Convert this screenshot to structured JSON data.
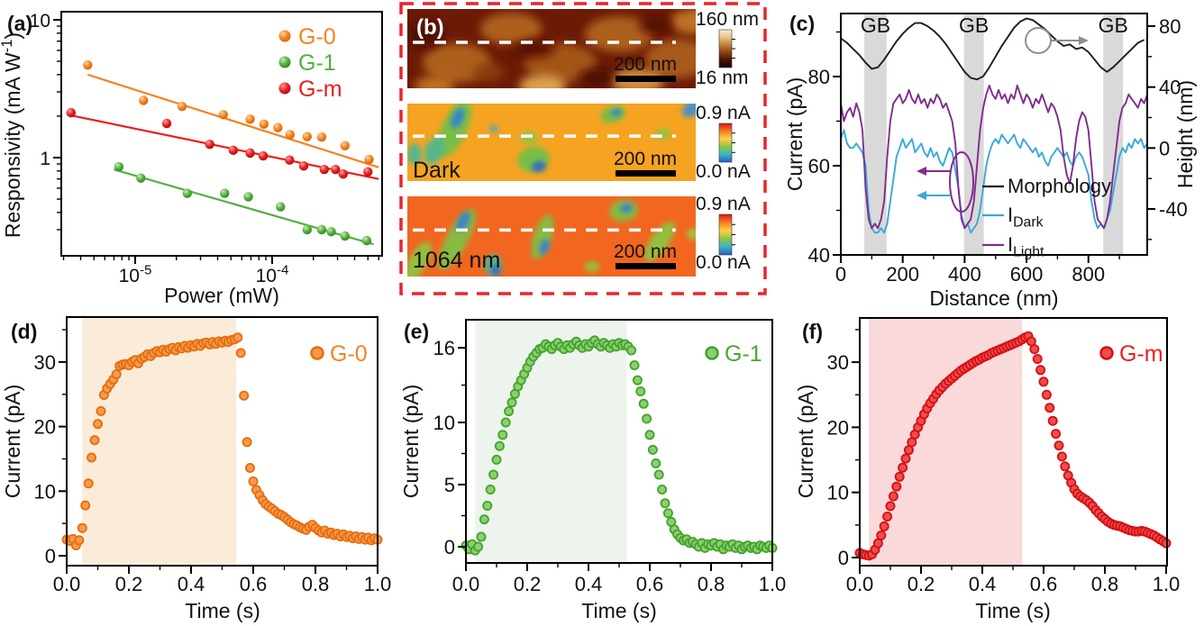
{
  "colors": {
    "orange": "#f58220",
    "orange_dark": "#e66d0e",
    "orange_fill": "#f79a4e",
    "green": "#53b043",
    "green_dark": "#3f9e2d",
    "green_fill": "#8ccf70",
    "red": "#e9201f",
    "red_dark": "#d31016",
    "red_fill": "#f04c49",
    "blue": "#38a8dd",
    "purple": "#7f2d8c",
    "black": "#1c1c1c",
    "gray_band": "#d9d9d9",
    "annotation_gray": "#8f8f8f",
    "dashed_border": "#e8252b"
  },
  "chart_data": [
    {
      "id": "a",
      "type": "scatter",
      "xscale": "log",
      "yscale": "log",
      "panel_label": "(a)",
      "xlabel": "Power (mW)",
      "ylabel": "Responsivity (mA W^{-1})",
      "xlim": [
        2.9e-06,
        0.00062
      ],
      "ylim": [
        0.2,
        10.5
      ],
      "xticks": [
        {
          "v": 1e-05,
          "label": "10^{-5}"
        },
        {
          "v": 0.0001,
          "label": "10^{-4}"
        }
      ],
      "yticks": [
        {
          "v": 1,
          "label": "1"
        },
        {
          "v": 10,
          "label": "10"
        }
      ],
      "series": [
        {
          "name": "G-0",
          "color": "#f58220",
          "points": [
            [
              4.5e-06,
              4.7
            ],
            [
              1.15e-05,
              2.6
            ],
            [
              2.2e-05,
              2.35
            ],
            [
              4.4e-05,
              2.05
            ],
            [
              6.9e-05,
              1.9
            ],
            [
              8.7e-05,
              1.75
            ],
            [
              0.00011,
              1.65
            ],
            [
              0.000135,
              1.47
            ],
            [
              0.00018,
              1.42
            ],
            [
              0.00023,
              1.41
            ],
            [
              0.00034,
              1.22
            ],
            [
              0.00051,
              0.97
            ]
          ],
          "fit": [
            [
              4.5e-06,
              4.0
            ],
            [
              0.0006,
              0.85
            ]
          ]
        },
        {
          "name": "G-1",
          "color": "#53b043",
          "points": [
            [
              7.6e-06,
              0.86
            ],
            [
              1.1e-05,
              0.71
            ],
            [
              2.4e-05,
              0.55
            ],
            [
              4.5e-05,
              0.55
            ],
            [
              6.7e-05,
              0.52
            ],
            [
              0.000115,
              0.44
            ],
            [
              0.00018,
              0.3
            ],
            [
              0.00023,
              0.3
            ],
            [
              0.00027,
              0.29
            ],
            [
              0.00034,
              0.27
            ],
            [
              0.00049,
              0.25
            ]
          ],
          "fit": [
            [
              7e-06,
              0.82
            ],
            [
              0.00055,
              0.235
            ]
          ]
        },
        {
          "name": "G-m",
          "color": "#e9201f",
          "points": [
            [
              3.4e-06,
              2.12
            ],
            [
              1.7e-05,
              1.77
            ],
            [
              3.5e-05,
              1.25
            ],
            [
              5.2e-05,
              1.13
            ],
            [
              6.9e-05,
              1.08
            ],
            [
              8.6e-05,
              1.03
            ],
            [
              0.000134,
              0.96
            ],
            [
              0.00017,
              0.87
            ],
            [
              0.00024,
              0.82
            ],
            [
              0.00029,
              0.82
            ],
            [
              0.00033,
              0.76
            ],
            [
              0.0005,
              0.79
            ]
          ],
          "fit": [
            [
              3.2e-06,
              2.05
            ],
            [
              0.0006,
              0.7
            ]
          ]
        }
      ]
    },
    {
      "id": "c",
      "type": "line",
      "panel_label": "(c)",
      "xlabel": "Distance (nm)",
      "ylabel_left": "Current (pA)",
      "ylabel_right": "Height (nm)",
      "xlim": [
        0,
        990
      ],
      "xticks": [
        0,
        200,
        400,
        600,
        800
      ],
      "ylim_left": [
        40,
        94
      ],
      "yticks_left": [
        40,
        60,
        80
      ],
      "yticks_left_minor": [
        50,
        70,
        90
      ],
      "ylim_right": [
        -72,
        88
      ],
      "yticks_right": [
        -40,
        0,
        40,
        80
      ],
      "yticks_right_minor": [
        -60,
        -20,
        20,
        60
      ],
      "gb_label": "GB",
      "gb_bands": [
        [
          76,
          148
        ],
        [
          398,
          462
        ],
        [
          848,
          912
        ]
      ],
      "series": [
        {
          "name": "Morphology",
          "axis": "right",
          "color": "#1c1c1c",
          "x0": 0,
          "dx": 20,
          "values": [
            72,
            69,
            65,
            61,
            56,
            52,
            53,
            58,
            64,
            70,
            75,
            79,
            82,
            82,
            80,
            77,
            73,
            68,
            62,
            56,
            50,
            46,
            45,
            47,
            53,
            60,
            67,
            73,
            79,
            83,
            85,
            84,
            81,
            78,
            74,
            70,
            67,
            68,
            65,
            66,
            63,
            58,
            53,
            50,
            53,
            57,
            61,
            65,
            69,
            71
          ]
        },
        {
          "name": "I_{Dark}",
          "axis": "left",
          "color": "#38a8dd",
          "x0": 0,
          "dx": 10,
          "values": [
            66,
            68,
            65,
            64,
            64,
            65,
            64,
            63,
            60,
            50,
            46,
            45,
            45,
            46,
            45,
            47,
            52,
            57,
            62,
            64,
            66,
            64,
            65,
            66,
            63,
            64,
            65,
            63,
            62,
            64,
            62,
            63,
            61,
            60,
            62,
            64,
            63,
            59,
            55,
            49,
            46,
            47,
            45,
            46,
            47,
            50,
            55,
            60,
            63,
            65,
            66,
            65,
            67,
            66,
            65,
            66,
            67,
            65,
            64,
            66,
            65,
            64,
            63,
            64,
            62,
            63,
            61,
            60,
            62,
            63,
            64,
            63,
            62,
            63,
            61,
            60,
            62,
            63,
            62,
            60,
            58,
            52,
            48,
            46,
            47,
            46,
            48,
            50,
            54,
            58,
            62,
            64,
            63,
            65,
            64,
            66,
            65,
            66,
            64,
            65
          ]
        },
        {
          "name": "I_{Light}",
          "axis": "left",
          "color": "#7f2d8c",
          "x0": 0,
          "dx": 10,
          "values": [
            74,
            70,
            72,
            73,
            71,
            74,
            72,
            68,
            55,
            48,
            46,
            47,
            46,
            48,
            52,
            62,
            70,
            74,
            75,
            76,
            74,
            75,
            77,
            75,
            74,
            76,
            74,
            75,
            73,
            75,
            74,
            76,
            75,
            73,
            74,
            72,
            70,
            65,
            55,
            48,
            46,
            47,
            48,
            52,
            60,
            68,
            73,
            76,
            78,
            76,
            75,
            77,
            75,
            76,
            74,
            76,
            75,
            78,
            76,
            74,
            76,
            75,
            73,
            75,
            74,
            76,
            74,
            72,
            74,
            73,
            71,
            68,
            62,
            58,
            56,
            60,
            66,
            70,
            72,
            71,
            68,
            60,
            52,
            48,
            47,
            46,
            48,
            52,
            58,
            64,
            70,
            73,
            74,
            76,
            75,
            74,
            73,
            75,
            74,
            76
          ]
        }
      ],
      "legend": [
        "Morphology",
        "I_{Dark}",
        "I_{Light}"
      ]
    },
    {
      "id": "d",
      "type": "time-scatter",
      "panel_label": "(d)",
      "legend": "G-0",
      "legend_color": "#f5821f",
      "xlabel": "Time (s)",
      "ylabel": "Current (pA)",
      "xlim": [
        0,
        1.02
      ],
      "xticks": [
        0,
        0.2,
        0.4,
        0.6,
        0.8,
        1.0
      ],
      "ylim": [
        -1.5,
        37
      ],
      "yticks": [
        0,
        10,
        20,
        30
      ],
      "yticks_minor": [
        5,
        15,
        25,
        35
      ],
      "light_on": [
        0.05,
        0.545
      ],
      "shade": "#faecd9",
      "marker": {
        "fill": "#f79a4e",
        "stroke": "#e66d0e"
      },
      "t0": 0,
      "dt": 0.01,
      "values": [
        2.5,
        2.3,
        2.6,
        1.6,
        2.4,
        4.3,
        7.8,
        11.2,
        15.2,
        17.9,
        20.4,
        22.4,
        24.9,
        25.9,
        26.6,
        27.3,
        28.1,
        29.4,
        29.6,
        29.7,
        29.5,
        30.0,
        30.3,
        29.8,
        30.5,
        30.8,
        31.2,
        30.9,
        31.4,
        31.7,
        31.5,
        31.9,
        31.6,
        32.0,
        32.2,
        31.8,
        32.3,
        32.1,
        32.5,
        32.2,
        32.6,
        32.4,
        32.8,
        32.5,
        32.9,
        33.0,
        32.7,
        33.1,
        32.8,
        33.2,
        33.0,
        33.3,
        33.1,
        33.4,
        33.5,
        33.8,
        31.4,
        24.8,
        17.6,
        13.6,
        11.5,
        10.2,
        9.4,
        8.6,
        8.0,
        7.6,
        7.3,
        6.9,
        6.5,
        6.3,
        6.0,
        5.6,
        5.2,
        4.9,
        4.7,
        4.4,
        4.2,
        4.0,
        4.5,
        4.8,
        4.3,
        3.9,
        3.6,
        3.9,
        3.4,
        3.6,
        3.2,
        3.4,
        3.0,
        3.3,
        2.9,
        3.1,
        2.7,
        3.0,
        2.6,
        2.9,
        2.5,
        2.8,
        2.4,
        2.7,
        2.5
      ]
    },
    {
      "id": "e",
      "type": "time-scatter",
      "panel_label": "(e)",
      "legend": "G-1",
      "legend_color": "#4ba636",
      "xlabel": "Time (s)",
      "ylabel": "Current (pA)",
      "xlim": [
        0,
        1.02
      ],
      "xticks": [
        0,
        0.2,
        0.4,
        0.6,
        0.8,
        1.0
      ],
      "ylim": [
        -1.3,
        18.3
      ],
      "yticks": [
        0,
        5,
        10,
        16
      ],
      "yticks_minor": [
        2.5,
        7.5,
        13
      ],
      "light_on": [
        0.03,
        0.525
      ],
      "shade": "#ecf4ed",
      "marker": {
        "fill": "#8ccf70",
        "stroke": "#43a22c"
      },
      "t0": 0,
      "dt": 0.01,
      "values": [
        0.1,
        -0.2,
        0.2,
        -0.3,
        0.0,
        0.8,
        2.2,
        3.3,
        4.6,
        5.8,
        7.0,
        8.1,
        9.0,
        10.0,
        10.9,
        11.6,
        12.3,
        12.9,
        13.4,
        13.9,
        14.4,
        14.9,
        15.3,
        15.6,
        15.9,
        16.0,
        16.3,
        16.1,
        15.9,
        16.2,
        16.4,
        16.1,
        15.9,
        16.2,
        16.0,
        16.3,
        16.5,
        16.2,
        16.0,
        16.3,
        16.1,
        16.4,
        16.6,
        16.3,
        16.1,
        16.4,
        16.2,
        16.0,
        16.3,
        16.1,
        16.4,
        16.2,
        16.3,
        16.1,
        15.8,
        14.6,
        13.4,
        12.5,
        11.5,
        10.3,
        9.0,
        7.8,
        6.7,
        5.8,
        4.6,
        3.5,
        2.7,
        2.0,
        1.4,
        1.0,
        0.7,
        0.5,
        0.6,
        0.3,
        0.4,
        0.2,
        0.0,
        0.3,
        -0.1,
        0.2,
        0.1,
        0.3,
        0.0,
        0.2,
        -0.2,
        0.1,
        0.0,
        0.2,
        -0.1,
        0.1,
        -0.2,
        0.0,
        0.1,
        -0.1,
        0.0,
        -0.2,
        0.1,
        0.0,
        -0.1,
        0.1,
        -0.1
      ]
    },
    {
      "id": "f",
      "type": "time-scatter",
      "panel_label": "(f)",
      "legend": "G-m",
      "legend_color": "#e9201f",
      "xlabel": "Time (s)",
      "ylabel": "Current (pA)",
      "xlim": [
        0,
        1.02
      ],
      "xticks": [
        0,
        0.2,
        0.4,
        0.6,
        0.8,
        1.0
      ],
      "ylim": [
        -1.3,
        36.8
      ],
      "yticks": [
        0,
        10,
        20,
        30
      ],
      "yticks_minor": [
        5,
        15,
        25,
        35
      ],
      "light_on": [
        0.03,
        0.53
      ],
      "shade": "#f9d9da",
      "marker": {
        "fill": "#f04c49",
        "stroke": "#d31016"
      },
      "t0": 0,
      "dt": 0.01,
      "values": [
        0.7,
        0.5,
        0.4,
        0.3,
        0.5,
        1.2,
        2.2,
        3.4,
        4.8,
        6.3,
        7.9,
        9.4,
        10.9,
        12.4,
        13.8,
        15.2,
        16.5,
        17.7,
        18.9,
        20.0,
        21.0,
        22.0,
        22.9,
        23.7,
        24.4,
        25.1,
        25.7,
        26.2,
        26.7,
        27.1,
        27.5,
        27.9,
        28.3,
        28.7,
        29.0,
        29.3,
        29.6,
        29.9,
        30.2,
        30.4,
        30.7,
        30.9,
        31.1,
        31.4,
        31.6,
        31.8,
        32.0,
        32.2,
        32.4,
        32.6,
        32.8,
        33.0,
        33.2,
        33.5,
        33.8,
        34.0,
        33.2,
        32.0,
        30.5,
        28.8,
        27.0,
        25.0,
        23.0,
        21.0,
        19.0,
        17.2,
        15.5,
        14.0,
        12.6,
        11.5,
        10.5,
        9.8,
        9.4,
        9.1,
        8.8,
        8.4,
        7.9,
        7.3,
        6.8,
        6.3,
        5.9,
        5.5,
        5.2,
        5.0,
        4.9,
        4.8,
        4.6,
        4.4,
        4.2,
        4.1,
        4.0,
        4.0,
        4.1,
        4.0,
        3.8,
        3.6,
        3.4,
        3.1,
        2.8,
        2.5,
        2.2
      ]
    }
  ],
  "panel_b": {
    "border_color": "#e8252b",
    "rows": [
      {
        "kind": "height",
        "overlay_label": "(b)",
        "overlay_color": "#ffffff",
        "scalebar_label": "200 nm",
        "cbar": {
          "top": "160 nm",
          "bottom": "16 nm",
          "stops": [
            "#f9eeda",
            "#e9c488",
            "#c08037",
            "#8a4413",
            "#491106",
            "#160301"
          ]
        }
      },
      {
        "kind": "current-dark",
        "overlay_label": "Dark",
        "overlay_color": "#111111",
        "scalebar_label": "200 nm",
        "cbar": {
          "top": "0.9 nA",
          "bottom": "0.0 nA",
          "stops": [
            "#d8191c",
            "#f57e20",
            "#ffd04a",
            "#8cc63f",
            "#3bb5c9",
            "#2b59c3"
          ]
        }
      },
      {
        "kind": "current-light",
        "overlay_label": "1064 nm",
        "overlay_color": "#111111",
        "scalebar_label": "200 nm",
        "cbar": {
          "top": "0.9 nA",
          "bottom": "0.0 nA",
          "stops": [
            "#d8191c",
            "#f57e20",
            "#ffd04a",
            "#8cc63f",
            "#3bb5c9",
            "#2b59c3"
          ]
        }
      }
    ]
  }
}
